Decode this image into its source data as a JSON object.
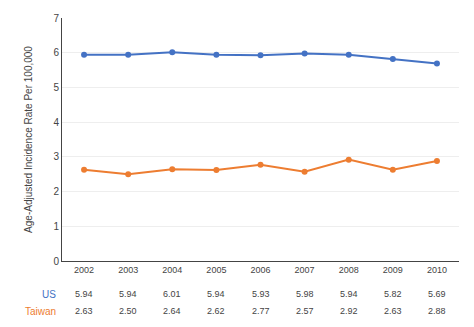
{
  "chart_data": {
    "type": "line",
    "categories": [
      "2002",
      "2003",
      "2004",
      "2005",
      "2006",
      "2007",
      "2008",
      "2009",
      "2010"
    ],
    "series": [
      {
        "name": "US",
        "color": "#4472C4",
        "marker": "circle",
        "values": [
          5.94,
          5.94,
          6.01,
          5.94,
          5.93,
          5.98,
          5.94,
          5.82,
          5.69
        ],
        "value_labels": [
          "5.94",
          "5.94",
          "6.01",
          "5.94",
          "5.93",
          "5.98",
          "5.94",
          "5.82",
          "5.69"
        ]
      },
      {
        "name": "Taiwan",
        "color": "#ED7D31",
        "marker": "circle",
        "values": [
          2.63,
          2.5,
          2.64,
          2.62,
          2.77,
          2.57,
          2.92,
          2.63,
          2.88
        ],
        "value_labels": [
          "2.63",
          "2.50",
          "2.64",
          "2.62",
          "2.77",
          "2.57",
          "2.92",
          "2.63",
          "2.88"
        ]
      }
    ],
    "ylabel": "Age-Adjusted Incidence Rate Per 100,000",
    "ylim": [
      0,
      7
    ],
    "yticks": [
      0,
      1,
      2,
      3,
      4,
      5,
      6,
      7
    ],
    "grid": true,
    "data_labels": true
  }
}
